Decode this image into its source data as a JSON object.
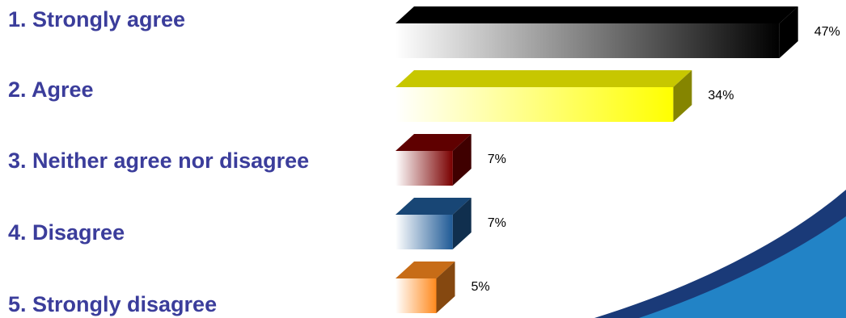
{
  "chart_data": {
    "type": "bar",
    "orientation": "horizontal",
    "style": "3d",
    "title": "",
    "xlabel": "",
    "ylabel": "",
    "xlim": [
      0,
      47
    ],
    "categories": [
      "1. Strongly agree",
      "2. Agree",
      "3. Neither agree nor disagree",
      "4. Disagree",
      "5. Strongly disagree"
    ],
    "values": [
      47,
      34,
      7,
      7,
      5
    ],
    "value_labels": [
      "47%",
      "34%",
      "7%",
      "7%",
      "5%"
    ],
    "colors": [
      "#000000",
      "#ffff00",
      "#7a0000",
      "#1f5a96",
      "#ff8a1e"
    ],
    "grid": false,
    "legend": "none"
  }
}
